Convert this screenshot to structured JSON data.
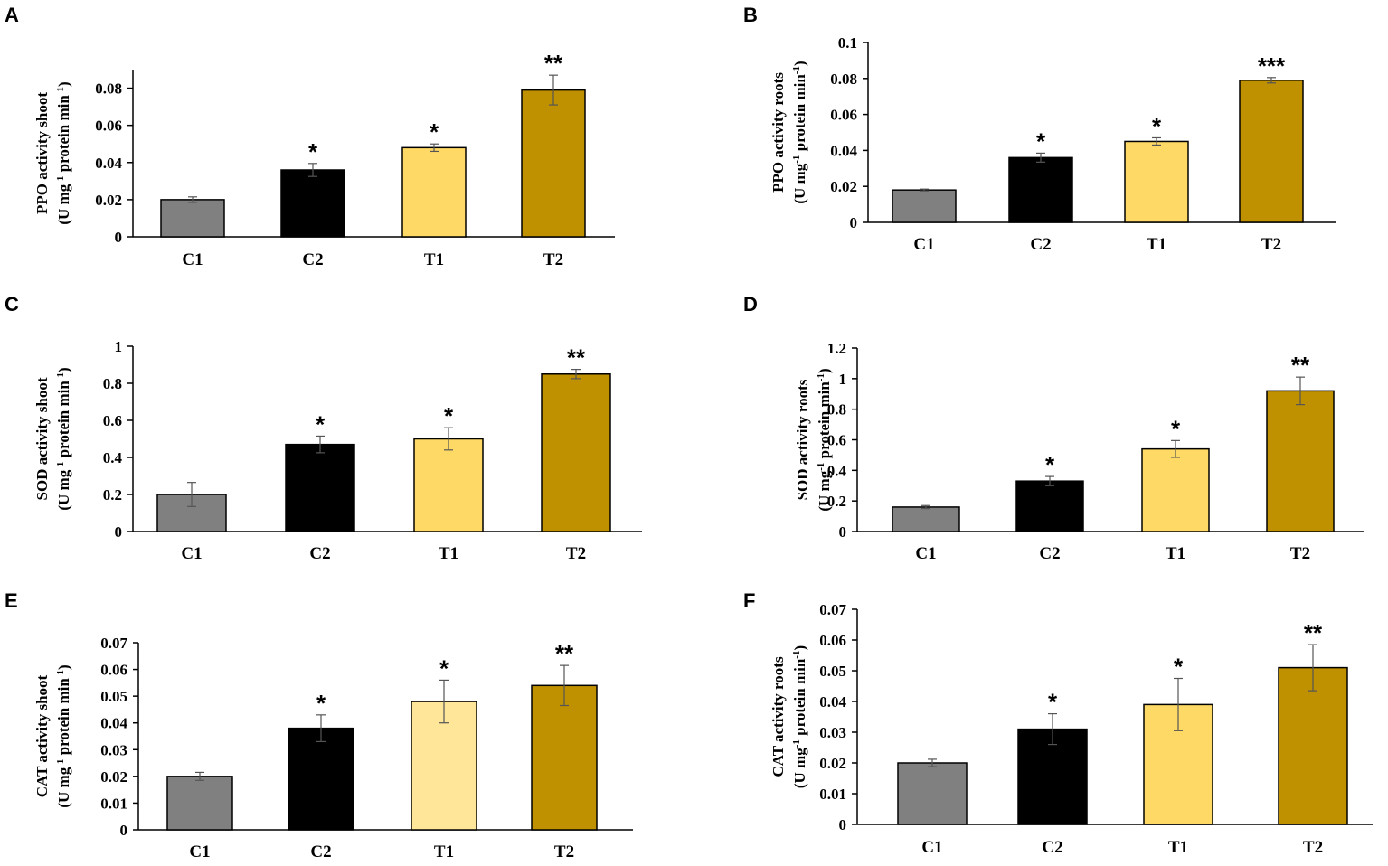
{
  "chart_data": [
    {
      "panel": "A",
      "type": "bar",
      "categories": [
        "C1",
        "C2",
        "T1",
        "T2"
      ],
      "values": [
        0.02,
        0.036,
        0.048,
        0.079
      ],
      "errors": [
        0.0015,
        0.0035,
        0.002,
        0.008
      ],
      "significance": [
        "",
        "*",
        "*",
        "**"
      ],
      "colors": [
        "#808080",
        "#000000",
        "#FFD966",
        "#BF9000"
      ],
      "ylabel_line1": "PPO activity shoot",
      "ylabel_line2_pre": "(U mg",
      "ylabel_line2_mid": " protein min",
      "ylabel_line2_post": ")",
      "ylabel_sup": "-1",
      "yticks": [
        "0",
        "0.02",
        "0.04",
        "0.06",
        "0.08"
      ],
      "ylim": [
        0,
        0.09
      ],
      "title": "",
      "xlabel": ""
    },
    {
      "panel": "B",
      "type": "bar",
      "categories": [
        "C1",
        "C2",
        "T1",
        "T2"
      ],
      "values": [
        0.018,
        0.036,
        0.045,
        0.079
      ],
      "errors": [
        0.0005,
        0.0025,
        0.002,
        0.0015
      ],
      "significance": [
        "",
        "*",
        "*",
        "***"
      ],
      "colors": [
        "#808080",
        "#000000",
        "#FFD966",
        "#BF9000"
      ],
      "ylabel_line1": "PPO activity roots",
      "ylabel_line2_pre": "(U mg",
      "ylabel_line2_mid": " protein min",
      "ylabel_line2_post": ")",
      "ylabel_sup": "-1",
      "yticks": [
        "0",
        "0.02",
        "0.04",
        "0.06",
        "0.08",
        "0.1"
      ],
      "ylim": [
        0,
        0.1
      ],
      "title": "",
      "xlabel": ""
    },
    {
      "panel": "C",
      "type": "bar",
      "categories": [
        "C1",
        "C2",
        "T1",
        "T2"
      ],
      "values": [
        0.2,
        0.47,
        0.5,
        0.85
      ],
      "errors": [
        0.065,
        0.045,
        0.06,
        0.025
      ],
      "significance": [
        "",
        "*",
        "*",
        "**"
      ],
      "colors": [
        "#808080",
        "#000000",
        "#FFD966",
        "#BF9000"
      ],
      "ylabel_line1": "SOD activity shoot",
      "ylabel_line2_pre": "(U mg",
      "ylabel_line2_mid": " protein min",
      "ylabel_line2_post": ")",
      "ylabel_sup": "-1",
      "yticks": [
        "0",
        "0.2",
        "0.4",
        "0.6",
        "0.8",
        "1"
      ],
      "ylim": [
        0,
        1
      ],
      "title": "",
      "xlabel": ""
    },
    {
      "panel": "D",
      "type": "bar",
      "categories": [
        "C1",
        "C2",
        "T1",
        "T2"
      ],
      "values": [
        0.16,
        0.33,
        0.54,
        0.92
      ],
      "errors": [
        0.01,
        0.03,
        0.055,
        0.09
      ],
      "significance": [
        "",
        "*",
        "*",
        "**"
      ],
      "colors": [
        "#808080",
        "#000000",
        "#FFD966",
        "#BF9000"
      ],
      "ylabel_line1": "SOD activity roots",
      "ylabel_line2_pre": "(U mg",
      "ylabel_line2_mid": " protein min",
      "ylabel_line2_post": ")",
      "ylabel_sup": "-1",
      "yticks": [
        "0",
        "0.2",
        "0.4",
        "0.6",
        "0.8",
        "1",
        "1.2"
      ],
      "ylim": [
        0,
        1.2
      ],
      "title": "",
      "xlabel": ""
    },
    {
      "panel": "E",
      "type": "bar",
      "categories": [
        "C1",
        "C2",
        "T1",
        "T2"
      ],
      "values": [
        0.02,
        0.038,
        0.048,
        0.054
      ],
      "errors": [
        0.0015,
        0.005,
        0.008,
        0.0075
      ],
      "significance": [
        "",
        "*",
        "*",
        "**"
      ],
      "colors": [
        "#808080",
        "#000000",
        "#FFE699",
        "#BF9000"
      ],
      "ylabel_line1": "CAT activity shoot",
      "ylabel_line2_pre": "(U mg",
      "ylabel_line2_mid": " protein min",
      "ylabel_line2_post": ")",
      "ylabel_sup": "-1",
      "yticks": [
        "0",
        "0.01",
        "0.02",
        "0.03",
        "0.04",
        "0.05",
        "0.06",
        "0.07"
      ],
      "ylim": [
        0,
        0.07
      ],
      "title": "",
      "xlabel": ""
    },
    {
      "panel": "F",
      "type": "bar",
      "categories": [
        "C1",
        "C2",
        "T1",
        "T2"
      ],
      "values": [
        0.02,
        0.031,
        0.039,
        0.051
      ],
      "errors": [
        0.0012,
        0.005,
        0.0085,
        0.0075
      ],
      "significance": [
        "",
        "*",
        "*",
        "**"
      ],
      "colors": [
        "#808080",
        "#000000",
        "#FFD966",
        "#BF9000"
      ],
      "ylabel_line1": "CAT activity roots",
      "ylabel_line2_pre": "(U mg",
      "ylabel_line2_mid": " protein min",
      "ylabel_line2_post": ")",
      "ylabel_sup": "-1",
      "yticks": [
        "0",
        "0.01",
        "0.02",
        "0.03",
        "0.04",
        "0.05",
        "0.06",
        "0.07"
      ],
      "ylim": [
        0,
        0.07
      ],
      "title": "",
      "xlabel": ""
    }
  ]
}
